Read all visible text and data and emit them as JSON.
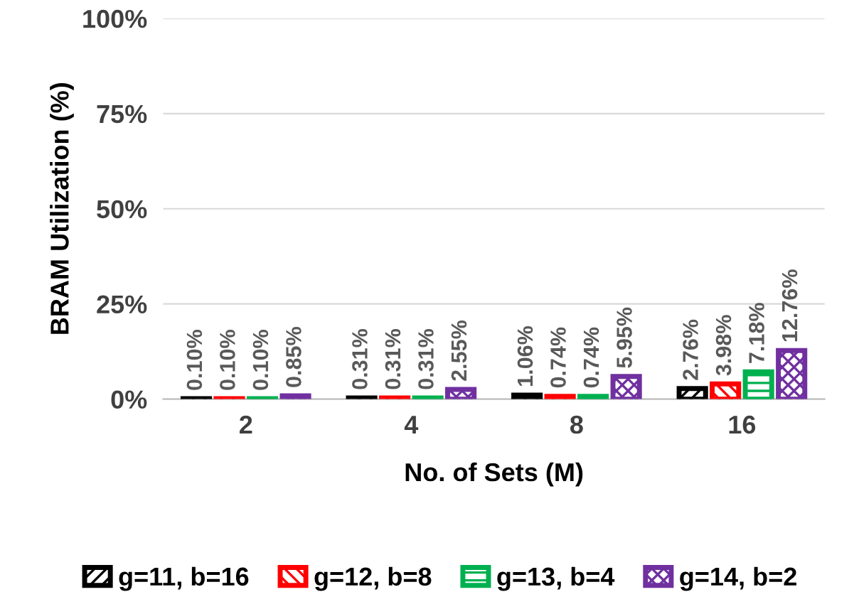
{
  "chart_data": {
    "type": "bar",
    "ylabel": "BRAM Utilization (%)",
    "xlabel": "No. of Sets (M)",
    "categories": [
      "2",
      "4",
      "8",
      "16"
    ],
    "series": [
      {
        "name": "g=11, b=16",
        "color": "#000000",
        "values": [
          0.1,
          0.31,
          1.06,
          2.76
        ],
        "value_labels": [
          "0.10%",
          "0.31%",
          "1.06%",
          "2.76%"
        ]
      },
      {
        "name": "g=12, b=8",
        "color": "#ff0000",
        "values": [
          0.1,
          0.31,
          0.74,
          3.98
        ],
        "value_labels": [
          "0.10%",
          "0.31%",
          "0.74%",
          "3.98%"
        ]
      },
      {
        "name": "g=13, b=4",
        "color": "#00b050",
        "values": [
          0.1,
          0.31,
          0.74,
          7.18
        ],
        "value_labels": [
          "0.10%",
          "0.31%",
          "0.74%",
          "7.18%"
        ]
      },
      {
        "name": "g=14, b=2",
        "color": "#7030a0",
        "values": [
          0.85,
          2.55,
          5.95,
          12.76
        ],
        "value_labels": [
          "0.85%",
          "2.55%",
          "5.95%",
          "12.76%"
        ]
      }
    ],
    "ylim": [
      0,
      100
    ],
    "yticks": [
      {
        "value": 0,
        "label": "0%"
      },
      {
        "value": 25,
        "label": "25%"
      },
      {
        "value": 50,
        "label": "50%"
      },
      {
        "value": 75,
        "label": "75%"
      },
      {
        "value": 100,
        "label": "100%"
      }
    ],
    "grid": "y",
    "legend": "bottom"
  }
}
